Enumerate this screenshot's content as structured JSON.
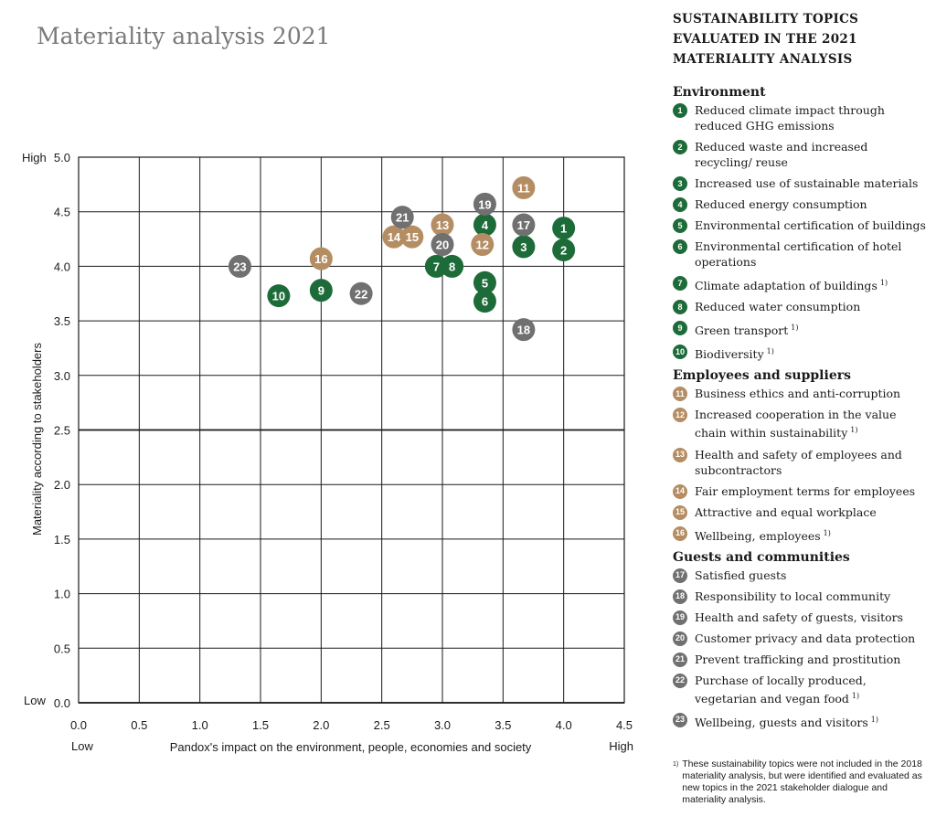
{
  "title": "Materiality analysis 2021",
  "legend": {
    "heading_lines": [
      "SUSTAINABILITY TOPICS",
      "EVALUATED IN THE 2021",
      "MATERIALITY ANALYSIS"
    ],
    "footnote_mark": "1)",
    "groups": [
      {
        "name": "Environment",
        "color": "#1e6b3a",
        "items": [
          {
            "num": "1",
            "text": "Reduced climate impact through reduced GHG emissions",
            "note": ""
          },
          {
            "num": "2",
            "text": "Reduced waste and increased recycling/ reuse",
            "note": ""
          },
          {
            "num": "3",
            "text": "Increased use of sustainable materials",
            "note": ""
          },
          {
            "num": "4",
            "text": "Reduced energy consumption",
            "note": ""
          },
          {
            "num": "5",
            "text": "Environmental certification of buildings",
            "note": ""
          },
          {
            "num": "6",
            "text": "Environmental certification of hotel operations",
            "note": ""
          },
          {
            "num": "7",
            "text": "Climate adaptation of buildings",
            "note": "1)"
          },
          {
            "num": "8",
            "text": "Reduced water consumption",
            "note": ""
          },
          {
            "num": "9",
            "text": "Green transport",
            "note": "1)"
          },
          {
            "num": "10",
            "text": "Biodiversity",
            "note": "1)"
          }
        ]
      },
      {
        "name": "Employees and suppliers",
        "color": "#b48d63",
        "items": [
          {
            "num": "11",
            "text": "Business ethics and anti-corruption",
            "note": ""
          },
          {
            "num": "12",
            "text": "Increased cooperation in the value chain within sustainability",
            "note": "1)"
          },
          {
            "num": "13",
            "text": "Health and safety of employees and subcontractors",
            "note": ""
          },
          {
            "num": "14",
            "text": "Fair employment terms for employees",
            "note": ""
          },
          {
            "num": "15",
            "text": "Attractive and equal workplace",
            "note": ""
          },
          {
            "num": "16",
            "text": "Wellbeing, employees",
            "note": "1)"
          }
        ]
      },
      {
        "name": "Guests and communities",
        "color": "#707070",
        "items": [
          {
            "num": "17",
            "text": "Satisfied guests",
            "note": ""
          },
          {
            "num": "18",
            "text": "Responsibility to local community",
            "note": ""
          },
          {
            "num": "19",
            "text": "Health and safety of guests, visitors",
            "note": ""
          },
          {
            "num": "20",
            "text": "Customer privacy and data protection",
            "note": ""
          },
          {
            "num": "21",
            "text": "Prevent trafficking and prostitution",
            "note": ""
          },
          {
            "num": "22",
            "text": "Purchase of locally produced, vegetarian and vegan food",
            "note": "1)"
          },
          {
            "num": "23",
            "text": "Wellbeing, guests and visitors",
            "note": "1)"
          }
        ]
      }
    ],
    "footnote": "These sustainability topics were not included in the 2018 materiality analysis, but were identified and evaluated as new topics in the 2021 stakeholder dialogue and materiality analysis."
  },
  "chart_data": {
    "type": "scatter",
    "xlabel": "Pandox's impact on the environment, people, economies and society",
    "ylabel": "Materiality according to stakeholders",
    "x_low_label": "Low",
    "x_high_label": "High",
    "y_low_label": "Low",
    "y_high_label": "High",
    "xlim": [
      0,
      4.5
    ],
    "ylim": [
      0,
      5.0
    ],
    "xticks": [
      "0.0",
      "0.5",
      "1.0",
      "1.5",
      "2.0",
      "2.5",
      "3.0",
      "3.5",
      "4.0",
      "4.5"
    ],
    "yticks": [
      "0.0",
      "0.5",
      "1.0",
      "1.5",
      "2.0",
      "2.5",
      "3.0",
      "3.5",
      "4.0",
      "4.5",
      "5.0"
    ],
    "grid": true,
    "colors": {
      "environment": "#1e6b3a",
      "employees": "#b48d63",
      "guests": "#707070"
    },
    "points": [
      {
        "label": "1",
        "group": "environment",
        "x": 4.0,
        "y": 4.35
      },
      {
        "label": "2",
        "group": "environment",
        "x": 4.0,
        "y": 4.15
      },
      {
        "label": "3",
        "group": "environment",
        "x": 3.67,
        "y": 4.18
      },
      {
        "label": "4",
        "group": "environment",
        "x": 3.35,
        "y": 4.38
      },
      {
        "label": "5",
        "group": "environment",
        "x": 3.35,
        "y": 3.85
      },
      {
        "label": "6",
        "group": "environment",
        "x": 3.35,
        "y": 3.68
      },
      {
        "label": "7",
        "group": "environment",
        "x": 2.95,
        "y": 4.0
      },
      {
        "label": "8",
        "group": "environment",
        "x": 3.08,
        "y": 4.0
      },
      {
        "label": "9",
        "group": "environment",
        "x": 2.0,
        "y": 3.78
      },
      {
        "label": "10",
        "group": "environment",
        "x": 1.65,
        "y": 3.73
      },
      {
        "label": "11",
        "group": "employees",
        "x": 3.67,
        "y": 4.72
      },
      {
        "label": "12",
        "group": "employees",
        "x": 3.33,
        "y": 4.2
      },
      {
        "label": "13",
        "group": "employees",
        "x": 3.0,
        "y": 4.38
      },
      {
        "label": "14",
        "group": "employees",
        "x": 2.6,
        "y": 4.27
      },
      {
        "label": "15",
        "group": "employees",
        "x": 2.75,
        "y": 4.27
      },
      {
        "label": "16",
        "group": "employees",
        "x": 2.0,
        "y": 4.07
      },
      {
        "label": "17",
        "group": "guests",
        "x": 3.67,
        "y": 4.38
      },
      {
        "label": "18",
        "group": "guests",
        "x": 3.67,
        "y": 3.42
      },
      {
        "label": "19",
        "group": "guests",
        "x": 3.35,
        "y": 4.57
      },
      {
        "label": "20",
        "group": "guests",
        "x": 3.0,
        "y": 4.2
      },
      {
        "label": "21",
        "group": "guests",
        "x": 2.67,
        "y": 4.45
      },
      {
        "label": "22",
        "group": "guests",
        "x": 2.33,
        "y": 3.75
      },
      {
        "label": "23",
        "group": "guests",
        "x": 1.33,
        "y": 4.0
      }
    ]
  }
}
